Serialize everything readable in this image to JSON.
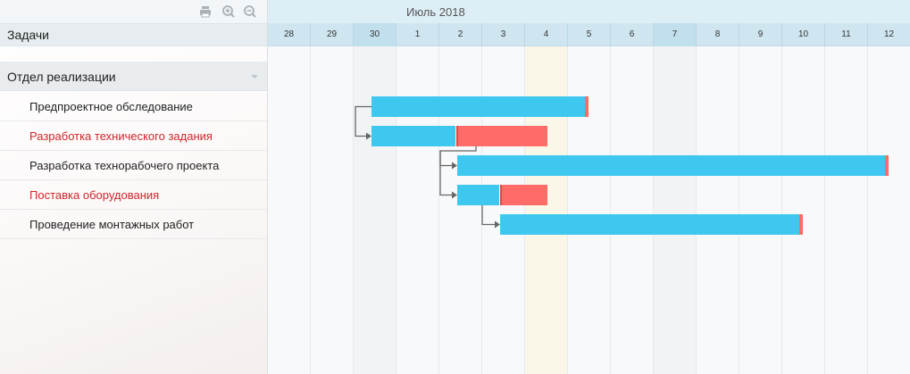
{
  "toolbar": {
    "icons": [
      "print-icon",
      "zoom-in-icon",
      "zoom-out-icon"
    ]
  },
  "tasks_header": "Задачи",
  "group": {
    "label": "Отдел реализации"
  },
  "tasks": [
    {
      "label": "Предпроектное обследование",
      "overdue": false,
      "start_day": "30",
      "end_day": "5"
    },
    {
      "label": "Разработка технического задания",
      "overdue": true,
      "start_day": "30",
      "end_day": "4"
    },
    {
      "label": "Разработка технорабочего проекта",
      "overdue": false,
      "start_day": "2",
      "end_day": "12"
    },
    {
      "label": "Поставка оборудования",
      "overdue": true,
      "start_day": "2",
      "end_day": "4"
    },
    {
      "label": "Проведение монтажных работ",
      "overdue": false,
      "start_day": "3",
      "end_day": "10"
    }
  ],
  "timeline": {
    "month": "Июль 2018",
    "days": [
      "28",
      "29",
      "30",
      "1",
      "2",
      "3",
      "4",
      "5",
      "6",
      "7",
      "8",
      "9",
      "10",
      "11",
      "12"
    ],
    "today": "4"
  },
  "colors": {
    "bar": "#3ec8ef",
    "overdue": "#fe6b68",
    "overdue_text": "#d0262b",
    "today": "#faf6e8"
  }
}
